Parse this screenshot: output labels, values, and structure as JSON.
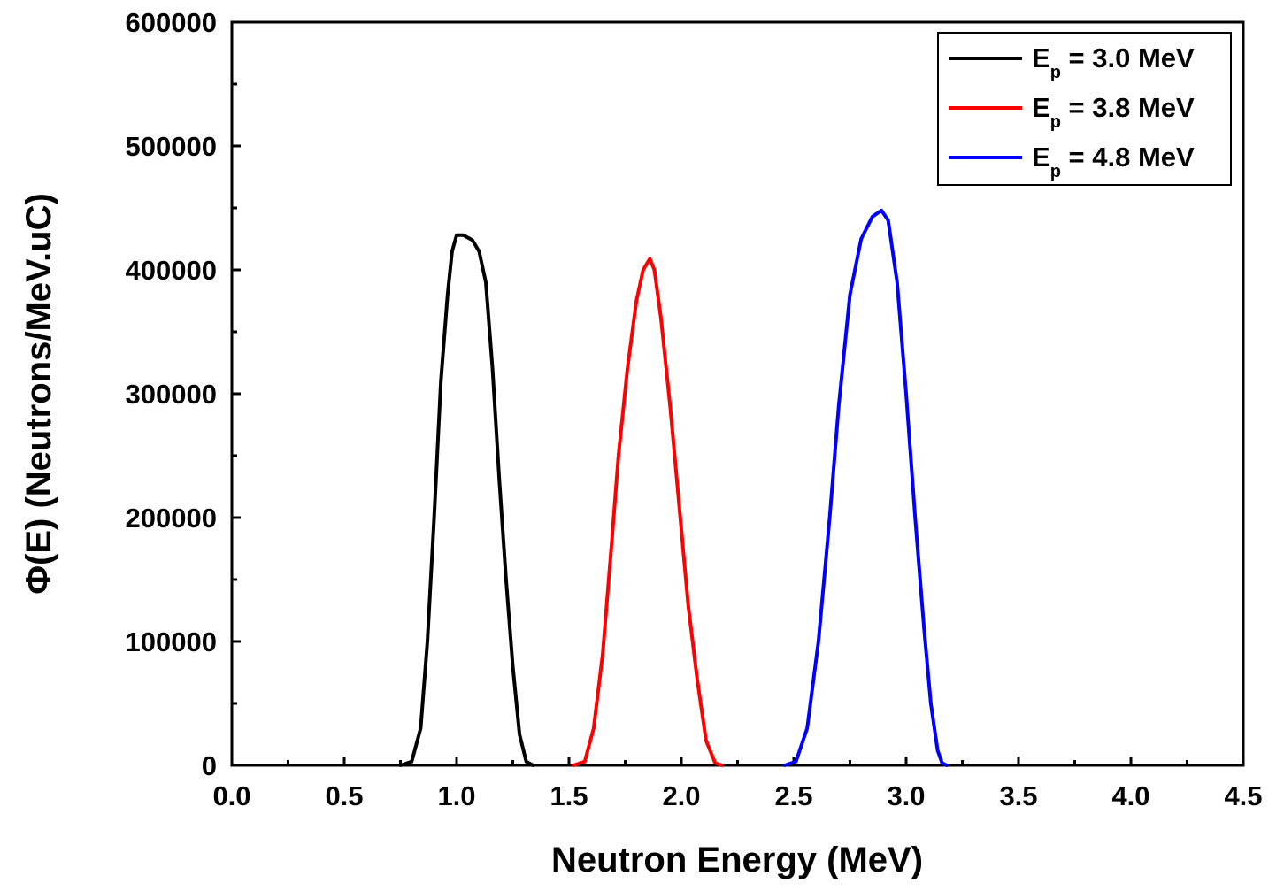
{
  "chart_data": {
    "type": "line",
    "title": "",
    "xlabel": "Neutron Energy (MeV)",
    "ylabel": "Φ(E) (Neutrons/MeV.uC)",
    "xlim": [
      0.0,
      4.5
    ],
    "ylim": [
      0,
      600000
    ],
    "x_ticks": [
      0.0,
      0.5,
      1.0,
      1.5,
      2.0,
      2.5,
      3.0,
      3.5,
      4.0,
      4.5
    ],
    "x_tick_labels": [
      "0.0",
      "0.5",
      "1.0",
      "1.5",
      "2.0",
      "2.5",
      "3.0",
      "3.5",
      "4.0",
      "4.5"
    ],
    "y_ticks": [
      0,
      100000,
      200000,
      300000,
      400000,
      500000,
      600000
    ],
    "y_tick_labels": [
      "0",
      "100000",
      "200000",
      "300000",
      "400000",
      "500000",
      "600000"
    ],
    "grid": false,
    "legend_position": "top-right",
    "series": [
      {
        "name": "Ep = 3.0 MeV",
        "legend_main": "E",
        "legend_sub": "p",
        "legend_rest": " = 3.0 MeV",
        "color": "#000000",
        "points": [
          [
            0.75,
            0
          ],
          [
            0.8,
            3000
          ],
          [
            0.84,
            30000
          ],
          [
            0.87,
            100000
          ],
          [
            0.9,
            200000
          ],
          [
            0.93,
            310000
          ],
          [
            0.96,
            380000
          ],
          [
            0.98,
            415000
          ],
          [
            1.0,
            428000
          ],
          [
            1.03,
            428000
          ],
          [
            1.07,
            424000
          ],
          [
            1.1,
            415000
          ],
          [
            1.13,
            390000
          ],
          [
            1.16,
            320000
          ],
          [
            1.19,
            230000
          ],
          [
            1.22,
            150000
          ],
          [
            1.25,
            80000
          ],
          [
            1.28,
            25000
          ],
          [
            1.31,
            3000
          ],
          [
            1.34,
            0
          ]
        ]
      },
      {
        "name": "Ep = 3.8 MeV",
        "legend_main": "E",
        "legend_sub": "p",
        "legend_rest": " = 3.8 MeV",
        "color": "#ff0000",
        "points": [
          [
            1.52,
            0
          ],
          [
            1.57,
            3000
          ],
          [
            1.61,
            30000
          ],
          [
            1.65,
            90000
          ],
          [
            1.69,
            180000
          ],
          [
            1.72,
            250000
          ],
          [
            1.76,
            320000
          ],
          [
            1.8,
            375000
          ],
          [
            1.83,
            400000
          ],
          [
            1.86,
            409000
          ],
          [
            1.88,
            400000
          ],
          [
            1.91,
            360000
          ],
          [
            1.95,
            290000
          ],
          [
            1.99,
            210000
          ],
          [
            2.03,
            130000
          ],
          [
            2.07,
            70000
          ],
          [
            2.11,
            20000
          ],
          [
            2.15,
            2000
          ],
          [
            2.18,
            0
          ]
        ]
      },
      {
        "name": "Ep = 4.8 MeV",
        "legend_main": "E",
        "legend_sub": "p",
        "legend_rest": " = 4.8 MeV",
        "color": "#0000ff",
        "points": [
          [
            2.46,
            0
          ],
          [
            2.51,
            3000
          ],
          [
            2.56,
            30000
          ],
          [
            2.61,
            100000
          ],
          [
            2.66,
            200000
          ],
          [
            2.7,
            290000
          ],
          [
            2.75,
            380000
          ],
          [
            2.8,
            425000
          ],
          [
            2.85,
            443000
          ],
          [
            2.89,
            448000
          ],
          [
            2.92,
            440000
          ],
          [
            2.96,
            390000
          ],
          [
            3.0,
            300000
          ],
          [
            3.04,
            200000
          ],
          [
            3.08,
            110000
          ],
          [
            3.11,
            50000
          ],
          [
            3.14,
            12000
          ],
          [
            3.16,
            2000
          ],
          [
            3.18,
            0
          ]
        ]
      }
    ]
  }
}
